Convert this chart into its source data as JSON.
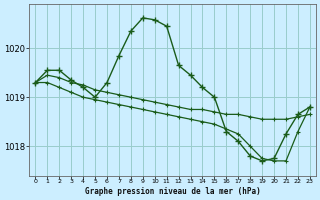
{
  "title": "Graphe pression niveau de la mer (hPa)",
  "background_color": "#cceeff",
  "grid_color": "#99cccc",
  "line_color": "#1a5c1a",
  "x_labels": [
    "0",
    "1",
    "2",
    "3",
    "4",
    "5",
    "6",
    "7",
    "8",
    "9",
    "10",
    "11",
    "12",
    "13",
    "14",
    "15",
    "16",
    "17",
    "18",
    "19",
    "20",
    "21",
    "22",
    "23"
  ],
  "ylim": [
    1017.4,
    1020.9
  ],
  "yticks": [
    1018,
    1019,
    1020
  ],
  "line1": [
    1019.3,
    1019.55,
    1019.55,
    1019.35,
    1019.2,
    1019.0,
    1019.3,
    1019.85,
    1020.35,
    1020.62,
    1020.58,
    1020.45,
    1019.65,
    1019.45,
    1019.2,
    1019.0,
    1018.3,
    1018.1,
    1017.8,
    1017.7,
    1017.75,
    1018.25,
    1018.65,
    1018.8
  ],
  "line2": [
    1019.3,
    1019.45,
    1019.4,
    1019.3,
    1019.25,
    1019.15,
    1019.1,
    1019.05,
    1019.0,
    1018.95,
    1018.9,
    1018.85,
    1018.8,
    1018.75,
    1018.75,
    1018.7,
    1018.65,
    1018.65,
    1018.6,
    1018.55,
    1018.55,
    1018.55,
    1018.6,
    1018.65
  ],
  "line3": [
    1019.3,
    1019.3,
    1019.2,
    1019.1,
    1019.0,
    1018.95,
    1018.9,
    1018.85,
    1018.8,
    1018.75,
    1018.7,
    1018.65,
    1018.6,
    1018.55,
    1018.5,
    1018.45,
    1018.35,
    1018.25,
    1018.0,
    1017.75,
    1017.7,
    1017.7,
    1018.3,
    1018.8
  ]
}
